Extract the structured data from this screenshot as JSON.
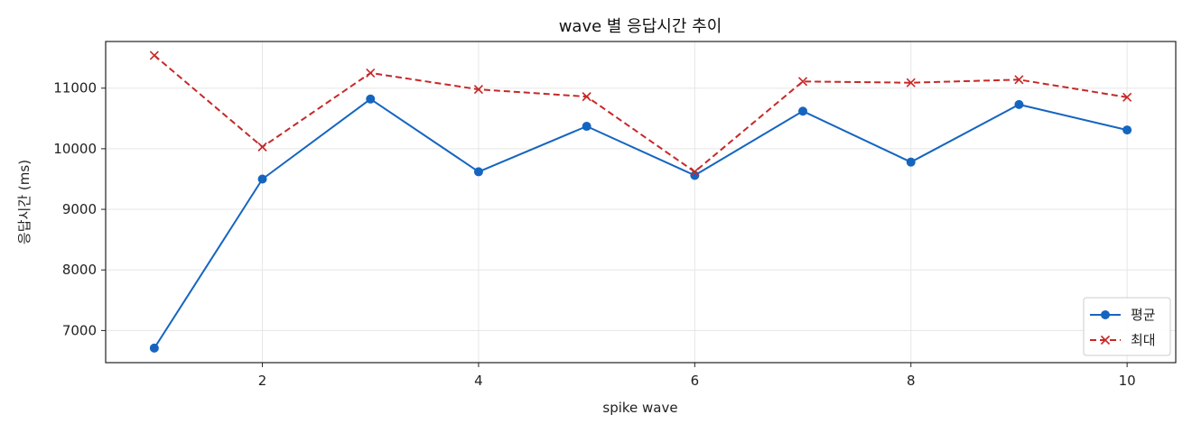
{
  "chart_data": {
    "type": "line",
    "title": "wave 별 응답시간 추이",
    "xlabel": "spike wave",
    "ylabel": "응답시간 (ms)",
    "x": [
      1,
      2,
      3,
      4,
      5,
      6,
      7,
      8,
      9,
      10
    ],
    "xticks": [
      2,
      4,
      6,
      8,
      10
    ],
    "yticks": [
      7000,
      8000,
      9000,
      10000,
      11000
    ],
    "xlim": [
      0.55,
      10.45
    ],
    "ylim": [
      6470,
      11770
    ],
    "grid": true,
    "legend_position": "lower-right",
    "series": [
      {
        "name": "평균",
        "color": "#1565c0",
        "line_style": "solid",
        "marker": "circle",
        "values": [
          6710,
          9500,
          10820,
          9620,
          10370,
          9560,
          10620,
          9780,
          10730,
          10310
        ]
      },
      {
        "name": "최대",
        "color": "#c62828",
        "line_style": "dashed",
        "marker": "x",
        "values": [
          11540,
          10030,
          11250,
          10980,
          10860,
          9620,
          11110,
          11090,
          11140,
          10850
        ]
      }
    ]
  }
}
